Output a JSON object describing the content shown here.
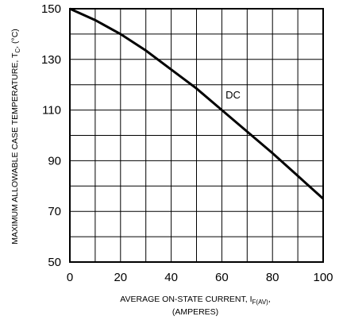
{
  "chart_data": {
    "type": "line",
    "xlabel": {
      "main": "AVERAGE ON-STATE  CURRENT, I",
      "sub": "F(AV)",
      "tail": ",",
      "line2": "(AMPERES)"
    },
    "ylabel": {
      "main": "MAXIMUM ALLOWABLE CASE TEMPERATURE, T",
      "sub": "C",
      "tail": ", (°C)"
    },
    "xlim": [
      0,
      100
    ],
    "ylim": [
      50,
      150
    ],
    "x_ticks": [
      0,
      20,
      40,
      60,
      80,
      100
    ],
    "y_ticks": [
      50,
      70,
      90,
      110,
      130,
      150
    ],
    "x_grid_step": 10,
    "y_grid_step": 10,
    "grid": true,
    "series": [
      {
        "name": "DC",
        "x": [
          0,
          10,
          20,
          30,
          40,
          50,
          60,
          70,
          80,
          90,
          100
        ],
        "y": [
          150,
          145.5,
          140,
          133.5,
          126,
          118.5,
          110,
          101.5,
          93,
          84,
          75
        ]
      }
    ]
  }
}
